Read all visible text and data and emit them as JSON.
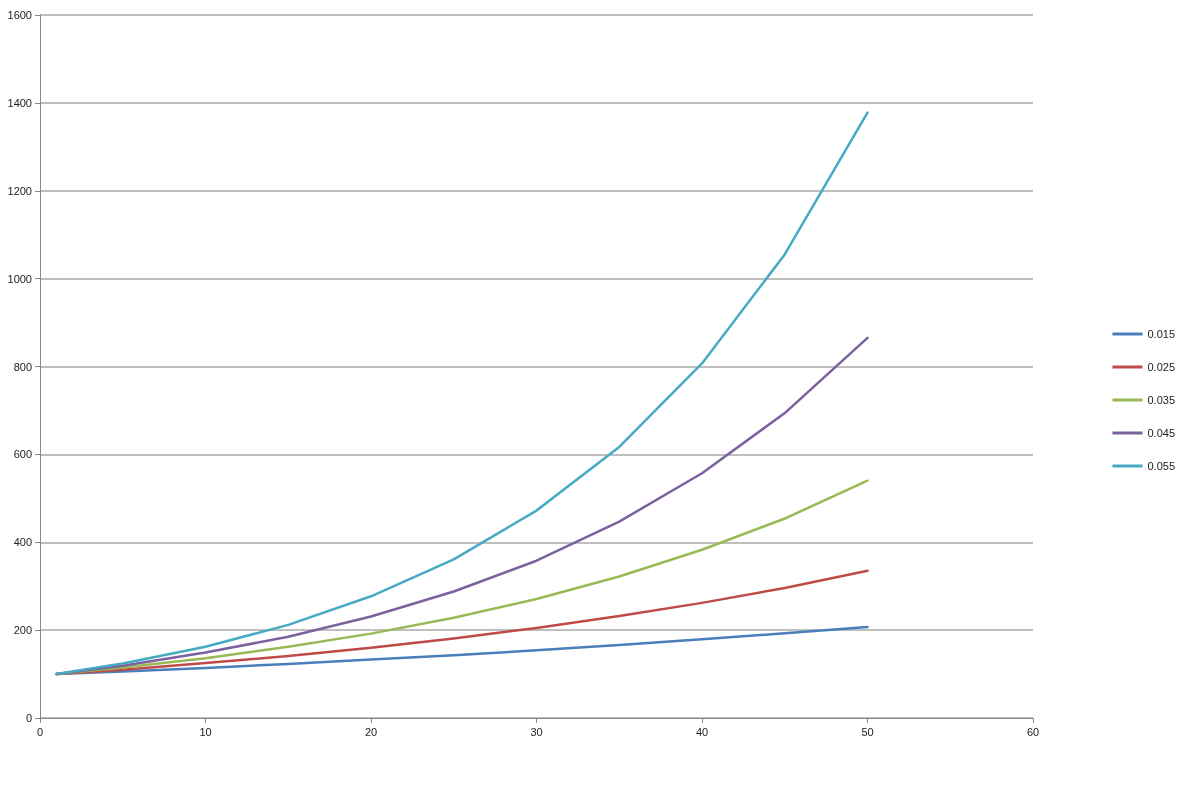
{
  "chart_data": {
    "type": "line",
    "x": [
      1,
      5,
      10,
      15,
      20,
      25,
      30,
      35,
      40,
      45,
      50
    ],
    "series": [
      {
        "name": "0.015",
        "color": "#4a7ebb",
        "values": [
          100,
          106,
          114,
          123,
          133,
          143,
          154,
          166,
          179,
          193,
          207
        ]
      },
      {
        "name": "0.025",
        "color": "#be4b48",
        "values": [
          100,
          110,
          125,
          141,
          160,
          181,
          205,
          232,
          262,
          296,
          335
        ]
      },
      {
        "name": "0.035",
        "color": "#98b954",
        "values": [
          100,
          115,
          136,
          162,
          192,
          228,
          271,
          322,
          383,
          454,
          540
        ]
      },
      {
        "name": "0.045",
        "color": "#7d60a0",
        "values": [
          100,
          119,
          149,
          185,
          231,
          288,
          358,
          447,
          557,
          694,
          865
        ]
      },
      {
        "name": "0.055",
        "color": "#46aac5",
        "values": [
          100,
          124,
          162,
          212,
          277,
          361,
          472,
          617,
          807,
          1055,
          1378
        ]
      }
    ],
    "xlim": [
      0,
      60
    ],
    "xticks": [
      0,
      10,
      20,
      30,
      40,
      50,
      60
    ],
    "ylim": [
      0,
      1600
    ],
    "yticks": [
      0,
      200,
      400,
      600,
      800,
      1000,
      1200,
      1400,
      1600
    ],
    "grid": "y",
    "legend": "right",
    "marker": "none",
    "line_style": "solid"
  }
}
